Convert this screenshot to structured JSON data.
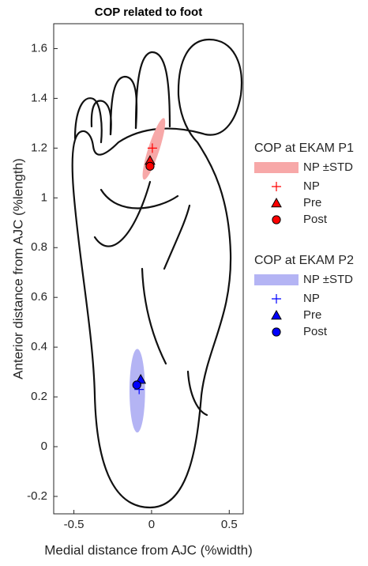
{
  "chart_data": {
    "type": "scatter",
    "title": "COP related to foot",
    "xlabel": "Medial distance from AJC (%width)",
    "ylabel": "Anterior distance from AJC (%length)",
    "xlim": [
      -0.63,
      0.59
    ],
    "ylim": [
      -0.27,
      1.7
    ],
    "xticks": [
      -0.5,
      0,
      0.5
    ],
    "yticks": [
      -0.2,
      0,
      0.2,
      0.4,
      0.6,
      0.8,
      1,
      1.2,
      1.4,
      1.6
    ],
    "groups": [
      {
        "title": "COP at EKAM P1",
        "color": "#ff0000",
        "ellipse": {
          "name": "NP ±STD",
          "color": "#f7a8a8",
          "x": 0.015,
          "y": 1.197,
          "x_std": 0.036,
          "y_std": 0.13,
          "angle": 18
        },
        "points": [
          {
            "name": "NP",
            "marker": "plus",
            "x": 0.005,
            "y": 1.2
          },
          {
            "name": "Pre",
            "marker": "triangle",
            "x": -0.01,
            "y": 1.15
          },
          {
            "name": "Post",
            "marker": "circle",
            "x": -0.01,
            "y": 1.127
          }
        ]
      },
      {
        "title": "COP at EKAM P2",
        "color": "#0000ff",
        "ellipse": {
          "name": "NP ±STD",
          "color": "#b4b4f4",
          "x": -0.092,
          "y": 0.225,
          "x_std": 0.05,
          "y_std": 0.168,
          "angle": 0
        },
        "points": [
          {
            "name": "NP",
            "marker": "plus",
            "x": -0.08,
            "y": 0.23
          },
          {
            "name": "Pre",
            "marker": "triangle",
            "x": -0.07,
            "y": 0.27
          },
          {
            "name": "Post",
            "marker": "circle",
            "x": -0.095,
            "y": 0.248
          }
        ]
      }
    ]
  }
}
